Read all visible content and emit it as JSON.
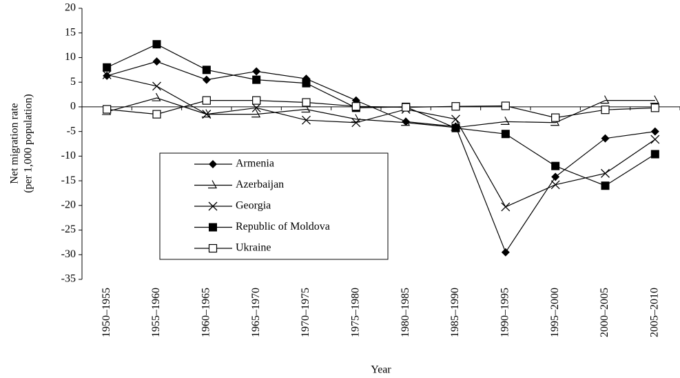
{
  "chart_data": {
    "type": "line",
    "y_label": [
      "Net migration rate",
      "(per 1,000 population)"
    ],
    "x_label": "Year",
    "categories": [
      "1950–1955",
      "1955–1960",
      "1960–1965",
      "1965–1970",
      "1970–1975",
      "1975–1980",
      "1980–1985",
      "1985–1990",
      "1990–1995",
      "1995–2000",
      "2000–2005",
      "2005–2010"
    ],
    "series": [
      {
        "name": "Armenia",
        "color": "#000000",
        "marker": "diamond",
        "values": [
          6.3,
          9.2,
          5.5,
          7.2,
          5.7,
          1.3,
          -3.0,
          -4.0,
          -29.5,
          -14.2,
          -6.4,
          -5.0
        ]
      },
      {
        "name": "Azerbaijan",
        "color": "#000000",
        "marker": "angle",
        "values": [
          -1.0,
          1.8,
          -1.5,
          -1.5,
          -0.5,
          -2.5,
          -3.2,
          -4.2,
          -3.0,
          -3.2,
          1.3,
          1.3
        ]
      },
      {
        "name": "Georgia",
        "color": "#000000",
        "marker": "x",
        "values": [
          6.5,
          4.2,
          -1.5,
          -0.2,
          -2.7,
          -3.2,
          -0.5,
          -2.5,
          -20.3,
          -15.8,
          -13.5,
          -6.6
        ]
      },
      {
        "name": "Republic of Moldova",
        "color": "#000000",
        "marker": "square",
        "values": [
          8.0,
          12.7,
          7.5,
          5.5,
          4.8,
          -0.2,
          0.0,
          -4.3,
          -5.5,
          -12.0,
          -16.0,
          -9.6
        ]
      },
      {
        "name": "Ukraine",
        "color": "#000000",
        "marker": "square-open",
        "values": [
          -0.5,
          -1.5,
          1.3,
          1.3,
          0.9,
          0.1,
          -0.1,
          0.1,
          0.2,
          -2.2,
          -0.6,
          -0.2
        ]
      }
    ],
    "ylim": [
      -35,
      20
    ],
    "yticks": [
      20,
      15,
      10,
      5,
      0,
      -5,
      -10,
      -15,
      -20,
      -25,
      -30,
      -35
    ],
    "grid": false,
    "legend": "inside"
  }
}
